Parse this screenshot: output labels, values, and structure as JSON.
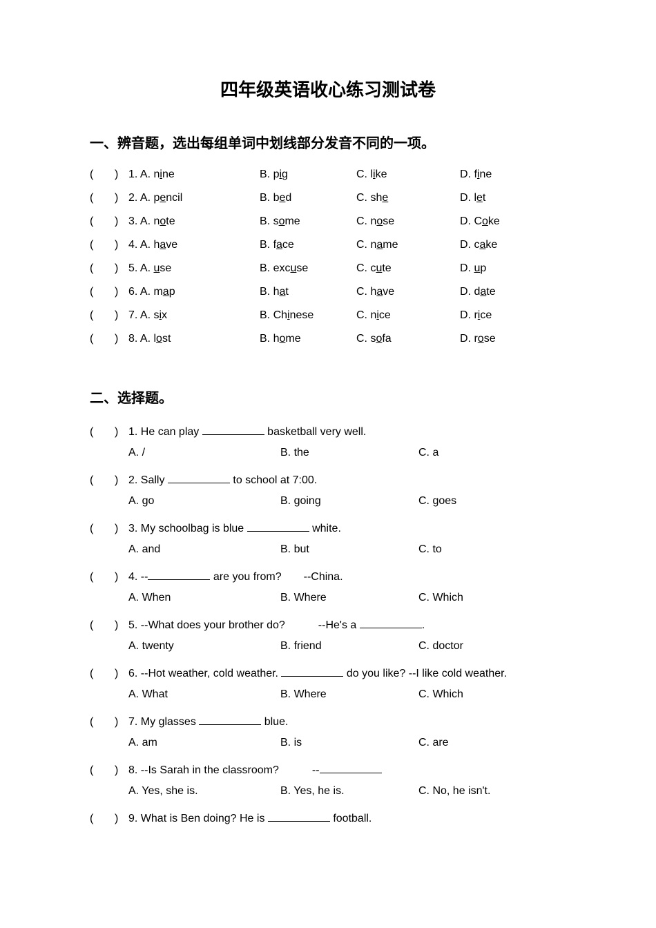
{
  "title": "四年级英语收心练习测试卷",
  "section1": {
    "heading": "一、辨音题，选出每组单词中划线部分发音不同的一项。",
    "rows": [
      {
        "num": "1",
        "a": {
          "pre": "n",
          "ul": "i",
          "post": "ne"
        },
        "b": {
          "pre": "p",
          "ul": "i",
          "post": "g"
        },
        "c": {
          "pre": "l",
          "ul": "i",
          "post": "ke"
        },
        "d": {
          "pre": "f",
          "ul": "i",
          "post": "ne"
        }
      },
      {
        "num": "2",
        "a": {
          "pre": "p",
          "ul": "e",
          "post": "ncil"
        },
        "b": {
          "pre": "b",
          "ul": "e",
          "post": "d"
        },
        "c": {
          "pre": "sh",
          "ul": "e",
          "post": ""
        },
        "d": {
          "pre": "l",
          "ul": "e",
          "post": "t"
        }
      },
      {
        "num": "3",
        "a": {
          "pre": "n",
          "ul": "o",
          "post": "te"
        },
        "b": {
          "pre": "s",
          "ul": "o",
          "post": "me"
        },
        "c": {
          "pre": "n",
          "ul": "o",
          "post": "se"
        },
        "d": {
          "pre": "C",
          "ul": "o",
          "post": "ke"
        }
      },
      {
        "num": "4",
        "a": {
          "pre": "h",
          "ul": "a",
          "post": "ve"
        },
        "b": {
          "pre": "f",
          "ul": "a",
          "post": "ce"
        },
        "c": {
          "pre": "n",
          "ul": "a",
          "post": "me"
        },
        "d": {
          "pre": "c",
          "ul": "a",
          "post": "ke"
        }
      },
      {
        "num": "5",
        "a": {
          "pre": "",
          "ul": "u",
          "post": "se"
        },
        "b": {
          "pre": "exc",
          "ul": "u",
          "post": "se"
        },
        "c": {
          "pre": "c",
          "ul": "u",
          "post": "te"
        },
        "d": {
          "pre": "",
          "ul": "u",
          "post": "p"
        }
      },
      {
        "num": "6",
        "a": {
          "pre": "m",
          "ul": "a",
          "post": "p"
        },
        "b": {
          "pre": "h",
          "ul": "a",
          "post": "t"
        },
        "c": {
          "pre": "h",
          "ul": "a",
          "post": "ve"
        },
        "d": {
          "pre": "d",
          "ul": "a",
          "post": "te"
        }
      },
      {
        "num": "7",
        "a": {
          "pre": "s",
          "ul": "i",
          "post": "x"
        },
        "b": {
          "pre": "Ch",
          "ul": "i",
          "post": "nese"
        },
        "c": {
          "pre": "n",
          "ul": "i",
          "post": "ce"
        },
        "d": {
          "pre": "r",
          "ul": "i",
          "post": "ce"
        }
      },
      {
        "num": "8",
        "a": {
          "pre": "l",
          "ul": "o",
          "post": "st"
        },
        "b": {
          "pre": "h",
          "ul": "o",
          "post": "me"
        },
        "c": {
          "pre": "s",
          "ul": "o",
          "post": "fa"
        },
        "d": {
          "pre": "r",
          "ul": "o",
          "post": "se"
        }
      }
    ]
  },
  "section2": {
    "heading": "二、选择题。",
    "questions": [
      {
        "num": "1",
        "text_before": "He can play ",
        "text_after": " basketball very well.",
        "opts": {
          "a": "A. /",
          "b": "B. the",
          "c": "C. a"
        }
      },
      {
        "num": "2",
        "text_before": "Sally ",
        "text_after": " to school at 7:00.",
        "opts": {
          "a": "A. go",
          "b": "B. going",
          "c": "C. goes"
        }
      },
      {
        "num": "3",
        "text_before": "My schoolbag is blue ",
        "text_after": " white.",
        "opts": {
          "a": "A. and",
          "b": "B. but",
          "c": "C. to"
        }
      },
      {
        "num": "4",
        "text_before": "--",
        "text_after": " are you from?  --China.",
        "opts": {
          "a": "A. When",
          "b": "B. Where",
          "c": "C. Which"
        }
      },
      {
        "num": "5",
        "text_before": "--What does your brother do?   --He's a ",
        "text_after": ".",
        "opts": {
          "a": "A. twenty",
          "b": "B. friend",
          "c": "C. doctor"
        }
      },
      {
        "num": "6",
        "text_before": "--Hot weather, cold weather. ",
        "text_after": " do you like? --I like cold weather.",
        "opts": {
          "a": "A. What",
          "b": "B. Where",
          "c": "C. Which"
        }
      },
      {
        "num": "7",
        "text_before": "My glasses ",
        "text_after": " blue.",
        "opts": {
          "a": "A. am",
          "b": "B. is",
          "c": "C. are"
        }
      },
      {
        "num": "8",
        "text_before": "--Is Sarah in the classroom?   --",
        "text_after": "",
        "opts": {
          "a": "A. Yes, she is.",
          "b": "B. Yes, he is.",
          "c": "C. No, he isn't."
        }
      },
      {
        "num": "9",
        "text_before": "What is Ben doing? He is ",
        "text_after": " football.",
        "opts": null
      }
    ]
  }
}
